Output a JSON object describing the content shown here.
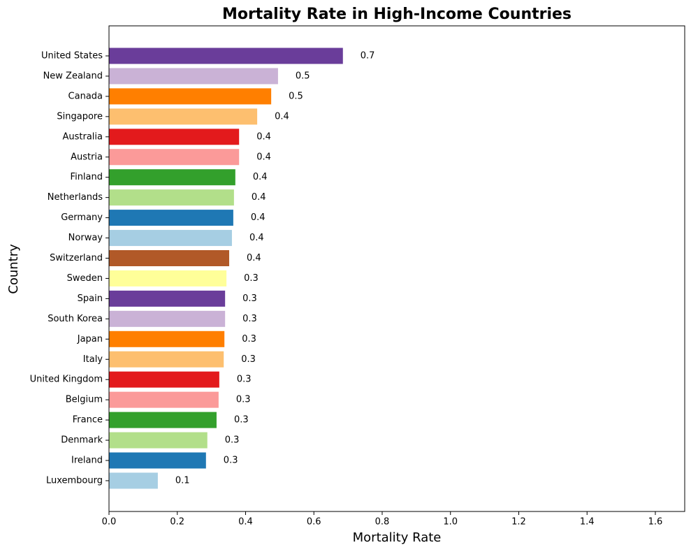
{
  "chart_data": {
    "type": "barh",
    "title": "Mortality Rate in High-Income Countries",
    "xlabel": "Mortality Rate",
    "ylabel": "Country",
    "categories": [
      "United States",
      "New Zealand",
      "Canada",
      "Singapore",
      "Australia",
      "Austria",
      "Finland",
      "Netherlands",
      "Germany",
      "Norway",
      "Switzerland",
      "Sweden",
      "Spain",
      "South Korea",
      "Japan",
      "Italy",
      "United Kingdom",
      "Belgium",
      "France",
      "Denmark",
      "Ireland",
      "Luxembourg"
    ],
    "values": [
      0.685,
      0.495,
      0.475,
      0.434,
      0.381,
      0.381,
      0.37,
      0.366,
      0.364,
      0.36,
      0.352,
      0.344,
      0.34,
      0.34,
      0.338,
      0.336,
      0.323,
      0.321,
      0.315,
      0.288,
      0.284,
      0.143
    ],
    "value_labels": [
      "0.7",
      "0.5",
      "0.5",
      "0.4",
      "0.4",
      "0.4",
      "0.4",
      "0.4",
      "0.4",
      "0.4",
      "0.4",
      "0.3",
      "0.3",
      "0.3",
      "0.3",
      "0.3",
      "0.3",
      "0.3",
      "0.3",
      "0.3",
      "0.3",
      "0.1"
    ],
    "colors": [
      "#6a3d9a",
      "#cab2d6",
      "#ff7f00",
      "#fdbf6f",
      "#e31a1c",
      "#fb9a99",
      "#33a02c",
      "#b2df8a",
      "#1f78b4",
      "#a6cee3",
      "#b15928",
      "#ffff99",
      "#6a3d9a",
      "#cab2d6",
      "#ff7f00",
      "#fdbf6f",
      "#e31a1c",
      "#fb9a99",
      "#33a02c",
      "#b2df8a",
      "#1f78b4",
      "#a6cee3"
    ],
    "xlim": [
      0,
      1.686
    ],
    "xticks": [
      {
        "value": 0,
        "label": "0.0"
      },
      0.2,
      0.4,
      0.6,
      0.8,
      {
        "value": 1,
        "label": "1.0"
      },
      1.2,
      1.4,
      1.6
    ],
    "grid": false
  }
}
